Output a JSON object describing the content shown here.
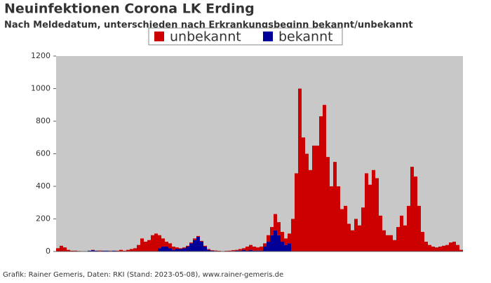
{
  "chart_data": {
    "type": "stacked_bar",
    "title": "Neuinfektionen Corona LK Erding",
    "subtitle": "Nach Meldedatum, unterschieden nach Erkrankungsbeginn bekannt/unbekannt",
    "footer": "Grafik: Rainer Gemeris, Daten: RKI (Stand: 2023-05-08), www.rainer-gemeris.de",
    "categories": [
      null,
      null,
      null,
      null,
      null,
      null,
      null,
      null,
      null,
      null,
      null,
      null,
      null,
      null,
      null,
      null,
      null,
      null,
      null,
      null,
      null,
      null,
      null,
      null,
      null,
      null,
      null,
      null,
      null,
      null,
      null,
      null,
      null,
      null,
      null,
      null,
      null,
      null,
      null,
      null,
      null,
      null,
      null,
      null,
      null,
      null,
      null,
      null,
      null,
      null,
      null,
      null,
      null,
      null,
      null,
      null,
      null,
      null,
      null,
      null,
      null,
      null,
      null,
      null,
      null,
      null,
      null,
      null,
      null,
      null,
      null,
      null,
      null,
      null,
      null,
      null,
      null,
      null,
      null,
      null,
      null,
      null,
      null,
      null,
      null,
      null,
      null,
      null,
      null,
      null,
      null,
      null,
      null,
      null,
      null,
      null,
      null,
      null,
      null,
      null,
      null,
      null,
      null,
      null,
      null,
      null,
      null,
      null,
      null,
      null,
      null,
      null,
      null,
      null,
      null,
      null
    ],
    "series": [
      {
        "name": "unbekannt",
        "color": "#cc0000",
        "values": [
          20,
          35,
          25,
          10,
          5,
          5,
          3,
          2,
          0,
          0,
          2,
          0,
          3,
          0,
          0,
          2,
          0,
          3,
          10,
          5,
          10,
          15,
          20,
          40,
          80,
          60,
          70,
          100,
          110,
          80,
          50,
          30,
          30,
          20,
          10,
          5,
          5,
          5,
          5,
          10,
          5,
          5,
          5,
          5,
          3,
          3,
          2,
          2,
          2,
          3,
          5,
          5,
          10,
          10,
          25,
          30,
          25,
          20,
          25,
          20,
          40,
          50,
          100,
          80,
          60,
          40,
          60,
          200,
          480,
          1000,
          700,
          600,
          500,
          650,
          650,
          830,
          900,
          580,
          400,
          550,
          400,
          260,
          280,
          170,
          130,
          200,
          160,
          270,
          480,
          410,
          500,
          450,
          220,
          130,
          100,
          100,
          70,
          150,
          220,
          160,
          280,
          520,
          460,
          280,
          120,
          60,
          40,
          30,
          25,
          30,
          35,
          40,
          55,
          60,
          40,
          10
        ]
      },
      {
        "name": "bekannt",
        "color": "#000099",
        "values": [
          0,
          0,
          0,
          0,
          0,
          0,
          0,
          0,
          0,
          5,
          8,
          5,
          3,
          5,
          5,
          3,
          5,
          2,
          0,
          0,
          0,
          0,
          0,
          0,
          0,
          0,
          0,
          0,
          0,
          20,
          30,
          30,
          20,
          10,
          15,
          15,
          20,
          30,
          50,
          70,
          90,
          60,
          30,
          10,
          5,
          3,
          2,
          0,
          2,
          2,
          3,
          5,
          5,
          10,
          5,
          10,
          5,
          5,
          5,
          30,
          60,
          100,
          130,
          100,
          60,
          40,
          50,
          0,
          0,
          0,
          0,
          0,
          0,
          0,
          0,
          0,
          0,
          0,
          0,
          0,
          0,
          0,
          0,
          0,
          0,
          0,
          0,
          0,
          0,
          0,
          0,
          0,
          0,
          0,
          0,
          0,
          0,
          0,
          0,
          0,
          0,
          0,
          0,
          0,
          0,
          0,
          0,
          0,
          0,
          0,
          0,
          0,
          0,
          0,
          0,
          0
        ]
      }
    ],
    "ylim": [
      0,
      1200
    ],
    "yticks": [
      0,
      200,
      400,
      600,
      800,
      1000,
      1200
    ],
    "plot_bg": "#c8c8c8"
  }
}
